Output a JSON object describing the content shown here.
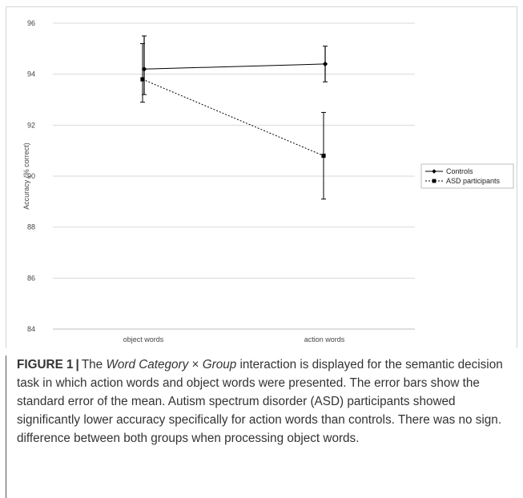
{
  "chart_data": {
    "type": "line",
    "title": "",
    "xlabel": "",
    "ylabel": "Accuracy (% correct)",
    "categories": [
      "object words",
      "action words"
    ],
    "ylim": [
      84,
      96
    ],
    "yticks": [
      "84",
      "86",
      "88",
      "90",
      "92",
      "94",
      "96"
    ],
    "grid": true,
    "legend_position": "right",
    "series": [
      {
        "name": "Controls",
        "values": [
          94.2,
          94.4
        ],
        "error_upper": [
          95.5,
          95.1
        ],
        "error_lower": [
          93.2,
          93.7
        ],
        "marker": "diamond",
        "line_style": "solid",
        "color": "#000000"
      },
      {
        "name": "ASD participants",
        "values": [
          93.8,
          90.8
        ],
        "error_upper": [
          95.2,
          92.5
        ],
        "error_lower": [
          92.9,
          89.1
        ],
        "marker": "square",
        "line_style": "dotted",
        "color": "#000000"
      }
    ]
  },
  "caption": {
    "label": "FIGURE 1",
    "separator": "|",
    "intro": "The ",
    "italic_1": "Word Category",
    "times": " × ",
    "italic_2": "Group",
    "text": " interaction is displayed for the semantic decision task in which action words and object words were presented. The error bars show the standard error of the mean. Autism spectrum disorder (ASD) participants showed significantly lower accuracy specifically for action words than controls. There was no sign. difference between both groups when processing object words."
  }
}
